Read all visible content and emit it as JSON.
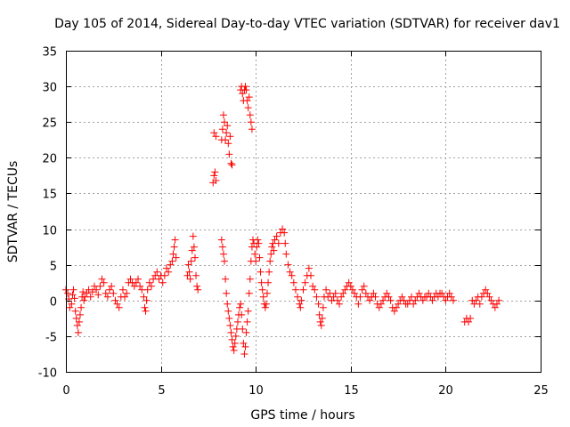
{
  "chart_data": {
    "type": "scatter",
    "title": "Day 105 of 2014, Sidereal Day-to-day VTEC variation (SDTVAR) for receiver dav1",
    "xlabel": "GPS time / hours",
    "ylabel": "SDTVAR / TECUs",
    "xlim": [
      0,
      25
    ],
    "ylim": [
      -10,
      35
    ],
    "xticks": [
      0,
      5,
      10,
      15,
      20,
      25
    ],
    "yticks": [
      -10,
      -5,
      0,
      5,
      10,
      15,
      20,
      25,
      30,
      35
    ],
    "xtick_labels": [
      "0",
      "5",
      "10",
      "15",
      "20",
      "25"
    ],
    "ytick_labels": [
      "-10",
      "-5",
      "0",
      "5",
      "10",
      "15",
      "20",
      "25",
      "30",
      "35"
    ],
    "grid": true,
    "marker": "+",
    "color": "#ff0000",
    "series": [
      {
        "name": "SDTVAR dav1",
        "points": [
          [
            0.0,
            1.5
          ],
          [
            0.1,
            1.0
          ],
          [
            0.15,
            0.2
          ],
          [
            0.2,
            -1.0
          ],
          [
            0.3,
            -0.5
          ],
          [
            0.35,
            0.8
          ],
          [
            0.4,
            1.5
          ],
          [
            0.45,
            0.3
          ],
          [
            0.5,
            -1.5
          ],
          [
            0.55,
            -2.5
          ],
          [
            0.6,
            -3.5
          ],
          [
            0.65,
            -4.5
          ],
          [
            0.7,
            -3.0
          ],
          [
            0.75,
            -2.0
          ],
          [
            0.8,
            -1.0
          ],
          [
            0.85,
            0.5
          ],
          [
            0.9,
            1.2
          ],
          [
            0.95,
            0.0
          ],
          [
            1.0,
            0.5
          ],
          [
            1.1,
            1.0
          ],
          [
            1.2,
            1.5
          ],
          [
            1.3,
            0.5
          ],
          [
            1.4,
            1.2
          ],
          [
            1.5,
            2.0
          ],
          [
            1.6,
            1.5
          ],
          [
            1.7,
            0.8
          ],
          [
            1.8,
            2.0
          ],
          [
            1.9,
            3.0
          ],
          [
            2.0,
            2.5
          ],
          [
            2.1,
            1.0
          ],
          [
            2.2,
            0.5
          ],
          [
            2.3,
            1.5
          ],
          [
            2.4,
            2.0
          ],
          [
            2.5,
            1.0
          ],
          [
            2.6,
            0.0
          ],
          [
            2.7,
            -0.5
          ],
          [
            2.8,
            -1.0
          ],
          [
            2.9,
            0.5
          ],
          [
            3.0,
            1.5
          ],
          [
            3.1,
            0.5
          ],
          [
            3.2,
            1.0
          ],
          [
            3.3,
            2.5
          ],
          [
            3.4,
            3.0
          ],
          [
            3.5,
            2.5
          ],
          [
            3.6,
            2.0
          ],
          [
            3.7,
            2.5
          ],
          [
            3.8,
            3.0
          ],
          [
            3.9,
            2.0
          ],
          [
            4.0,
            1.5
          ],
          [
            4.1,
            0.5
          ],
          [
            4.15,
            -1.0
          ],
          [
            4.2,
            -1.5
          ],
          [
            4.25,
            0.0
          ],
          [
            4.3,
            1.5
          ],
          [
            4.4,
            2.5
          ],
          [
            4.5,
            2.0
          ],
          [
            4.6,
            3.0
          ],
          [
            4.7,
            3.5
          ],
          [
            4.8,
            4.0
          ],
          [
            4.9,
            3.0
          ],
          [
            5.0,
            3.5
          ],
          [
            5.1,
            2.5
          ],
          [
            5.2,
            3.5
          ],
          [
            5.3,
            4.5
          ],
          [
            5.4,
            4.0
          ],
          [
            5.5,
            5.0
          ],
          [
            5.6,
            5.5
          ],
          [
            5.65,
            6.5
          ],
          [
            5.7,
            7.5
          ],
          [
            5.75,
            8.5
          ],
          [
            5.8,
            6.0
          ],
          [
            6.4,
            3.5
          ],
          [
            6.45,
            5.0
          ],
          [
            6.5,
            4.0
          ],
          [
            6.55,
            3.0
          ],
          [
            6.6,
            5.5
          ],
          [
            6.65,
            7.0
          ],
          [
            6.7,
            9.0
          ],
          [
            6.75,
            7.5
          ],
          [
            6.8,
            6.0
          ],
          [
            6.85,
            3.5
          ],
          [
            6.9,
            2.0
          ],
          [
            6.95,
            1.5
          ],
          [
            7.75,
            16.5
          ],
          [
            7.8,
            17.5
          ],
          [
            7.85,
            18.0
          ],
          [
            7.9,
            16.8
          ],
          [
            7.8,
            23.5
          ],
          [
            7.9,
            23.0
          ],
          [
            8.2,
            22.5
          ],
          [
            8.25,
            24.0
          ],
          [
            8.3,
            26.0
          ],
          [
            8.35,
            25.0
          ],
          [
            8.4,
            22.5
          ],
          [
            8.45,
            23.5
          ],
          [
            8.5,
            24.5
          ],
          [
            8.55,
            22.0
          ],
          [
            8.6,
            20.5
          ],
          [
            8.65,
            23.0
          ],
          [
            8.7,
            19.2
          ],
          [
            8.75,
            19.0
          ],
          [
            9.2,
            29.5
          ],
          [
            9.25,
            30.0
          ],
          [
            9.3,
            29.0
          ],
          [
            9.35,
            28.0
          ],
          [
            9.4,
            29.5
          ],
          [
            9.45,
            30.0
          ],
          [
            9.5,
            29.5
          ],
          [
            9.55,
            28.0
          ],
          [
            9.6,
            27.0
          ],
          [
            9.65,
            28.5
          ],
          [
            9.7,
            26.0
          ],
          [
            9.75,
            25.0
          ],
          [
            9.8,
            24.0
          ],
          [
            8.2,
            8.5
          ],
          [
            8.25,
            7.5
          ],
          [
            8.3,
            6.5
          ],
          [
            8.35,
            5.5
          ],
          [
            8.4,
            3.0
          ],
          [
            8.45,
            1.0
          ],
          [
            8.5,
            -0.5
          ],
          [
            8.55,
            -1.5
          ],
          [
            8.6,
            -2.5
          ],
          [
            8.65,
            -3.5
          ],
          [
            8.7,
            -4.5
          ],
          [
            8.75,
            -5.5
          ],
          [
            8.8,
            -6.5
          ],
          [
            8.85,
            -7.0
          ],
          [
            8.9,
            -6.0
          ],
          [
            8.95,
            -5.0
          ],
          [
            9.0,
            -4.0
          ],
          [
            9.05,
            -3.0
          ],
          [
            9.1,
            -2.0
          ],
          [
            9.15,
            -1.0
          ],
          [
            9.2,
            -0.5
          ],
          [
            9.25,
            -2.0
          ],
          [
            9.3,
            -4.0
          ],
          [
            9.35,
            -6.0
          ],
          [
            9.4,
            -7.5
          ],
          [
            9.45,
            -6.5
          ],
          [
            9.5,
            -4.5
          ],
          [
            9.55,
            -3.0
          ],
          [
            9.6,
            -1.5
          ],
          [
            9.65,
            1.0
          ],
          [
            9.7,
            3.0
          ],
          [
            9.75,
            5.5
          ],
          [
            9.8,
            7.5
          ],
          [
            9.85,
            8.5
          ],
          [
            9.9,
            8.0
          ],
          [
            9.95,
            6.5
          ],
          [
            10.0,
            5.5
          ],
          [
            10.05,
            7.5
          ],
          [
            10.1,
            8.5
          ],
          [
            10.15,
            8.0
          ],
          [
            10.2,
            6.0
          ],
          [
            10.25,
            4.0
          ],
          [
            10.3,
            2.5
          ],
          [
            10.35,
            1.5
          ],
          [
            10.4,
            0.5
          ],
          [
            10.45,
            -0.5
          ],
          [
            10.5,
            -1.0
          ],
          [
            10.55,
            -0.5
          ],
          [
            10.6,
            1.0
          ],
          [
            10.65,
            2.5
          ],
          [
            10.7,
            4.0
          ],
          [
            10.75,
            5.5
          ],
          [
            10.8,
            6.5
          ],
          [
            10.85,
            7.5
          ],
          [
            10.9,
            8.0
          ],
          [
            10.95,
            7.0
          ],
          [
            11.0,
            8.5
          ],
          [
            11.1,
            9.0
          ],
          [
            11.2,
            8.0
          ],
          [
            11.3,
            9.5
          ],
          [
            11.4,
            10.0
          ],
          [
            11.5,
            9.5
          ],
          [
            11.55,
            8.0
          ],
          [
            11.6,
            6.5
          ],
          [
            11.7,
            5.0
          ],
          [
            11.8,
            4.0
          ],
          [
            11.9,
            3.5
          ],
          [
            12.0,
            2.5
          ],
          [
            12.1,
            1.5
          ],
          [
            12.2,
            0.5
          ],
          [
            12.3,
            -0.5
          ],
          [
            12.35,
            -1.0
          ],
          [
            12.4,
            0.0
          ],
          [
            12.5,
            1.5
          ],
          [
            12.6,
            2.5
          ],
          [
            12.7,
            3.5
          ],
          [
            12.8,
            4.5
          ],
          [
            12.9,
            3.5
          ],
          [
            13.0,
            2.0
          ],
          [
            13.1,
            1.5
          ],
          [
            13.2,
            0.5
          ],
          [
            13.3,
            -0.5
          ],
          [
            13.35,
            -2.0
          ],
          [
            13.4,
            -3.0
          ],
          [
            13.45,
            -3.5
          ],
          [
            13.5,
            -2.5
          ],
          [
            13.55,
            -1.0
          ],
          [
            13.6,
            0.5
          ],
          [
            13.7,
            1.5
          ],
          [
            13.8,
            0.5
          ],
          [
            13.9,
            1.0
          ],
          [
            14.0,
            0.0
          ],
          [
            14.1,
            0.5
          ],
          [
            14.2,
            1.0
          ],
          [
            14.3,
            0.0
          ],
          [
            14.4,
            -0.5
          ],
          [
            14.5,
            0.5
          ],
          [
            14.6,
            1.0
          ],
          [
            14.7,
            1.5
          ],
          [
            14.8,
            2.0
          ],
          [
            14.9,
            2.5
          ],
          [
            15.0,
            2.0
          ],
          [
            15.1,
            1.5
          ],
          [
            15.2,
            1.0
          ],
          [
            15.3,
            0.5
          ],
          [
            15.4,
            -0.5
          ],
          [
            15.5,
            0.5
          ],
          [
            15.6,
            1.5
          ],
          [
            15.7,
            2.0
          ],
          [
            15.8,
            1.0
          ],
          [
            15.9,
            0.5
          ],
          [
            16.0,
            0.0
          ],
          [
            16.1,
            0.5
          ],
          [
            16.2,
            1.0
          ],
          [
            16.3,
            0.5
          ],
          [
            16.4,
            -0.5
          ],
          [
            16.5,
            -1.0
          ],
          [
            16.6,
            -0.5
          ],
          [
            16.7,
            0.0
          ],
          [
            16.8,
            0.5
          ],
          [
            16.9,
            1.0
          ],
          [
            17.0,
            0.5
          ],
          [
            17.1,
            0.0
          ],
          [
            17.2,
            -1.0
          ],
          [
            17.3,
            -1.5
          ],
          [
            17.4,
            -1.0
          ],
          [
            17.5,
            -0.5
          ],
          [
            17.6,
            0.0
          ],
          [
            17.7,
            0.5
          ],
          [
            17.8,
            0.0
          ],
          [
            17.9,
            -0.5
          ],
          [
            18.0,
            -0.5
          ],
          [
            18.1,
            0.0
          ],
          [
            18.2,
            0.5
          ],
          [
            18.3,
            -0.5
          ],
          [
            18.4,
            0.0
          ],
          [
            18.5,
            0.5
          ],
          [
            18.6,
            1.0
          ],
          [
            18.7,
            0.5
          ],
          [
            18.8,
            0.0
          ],
          [
            18.9,
            0.5
          ],
          [
            19.0,
            0.5
          ],
          [
            19.1,
            1.0
          ],
          [
            19.2,
            0.5
          ],
          [
            19.3,
            0.0
          ],
          [
            19.4,
            0.5
          ],
          [
            19.5,
            1.0
          ],
          [
            19.6,
            0.5
          ],
          [
            19.7,
            1.0
          ],
          [
            19.8,
            1.0
          ],
          [
            19.9,
            0.5
          ],
          [
            20.0,
            0.0
          ],
          [
            20.1,
            0.5
          ],
          [
            20.2,
            1.0
          ],
          [
            20.3,
            0.5
          ],
          [
            20.4,
            0.0
          ],
          [
            21.0,
            -3.0
          ],
          [
            21.1,
            -2.5
          ],
          [
            21.2,
            -3.0
          ],
          [
            21.3,
            -2.5
          ],
          [
            21.4,
            0.0
          ],
          [
            21.5,
            -0.5
          ],
          [
            21.6,
            0.0
          ],
          [
            21.7,
            0.5
          ],
          [
            21.8,
            -0.5
          ],
          [
            21.9,
            0.5
          ],
          [
            22.0,
            1.0
          ],
          [
            22.1,
            1.5
          ],
          [
            22.2,
            1.0
          ],
          [
            22.3,
            0.5
          ],
          [
            22.4,
            0.0
          ],
          [
            22.5,
            -0.5
          ],
          [
            22.6,
            -1.0
          ],
          [
            22.7,
            -0.5
          ],
          [
            22.8,
            0.0
          ]
        ]
      }
    ]
  }
}
